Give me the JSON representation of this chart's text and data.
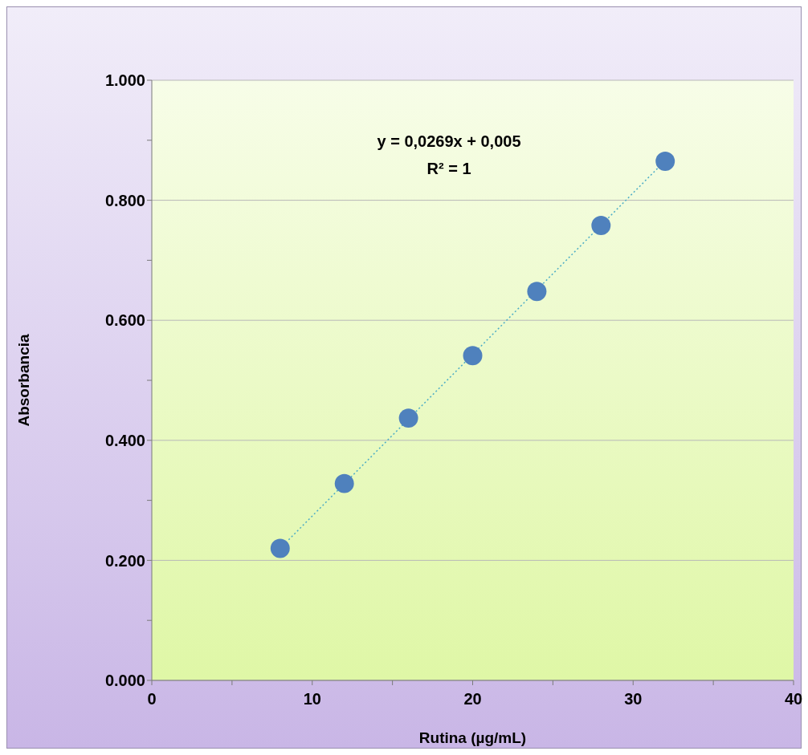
{
  "chart_data": {
    "type": "scatter",
    "xlabel": "Rutina (µg/mL)",
    "ylabel": "Absorbancia",
    "x": [
      8,
      12,
      16,
      20,
      24,
      28,
      32
    ],
    "series": [
      {
        "type": "scatter",
        "color": "#4f81bd",
        "values": [
          0.22,
          0.328,
          0.437,
          0.541,
          0.648,
          0.758,
          0.865
        ],
        "marker": "circle"
      },
      {
        "type": "line",
        "x": [
          8,
          32
        ],
        "color": "#4bacc6",
        "values": [
          0.22,
          0.866
        ],
        "line_style": "dotted",
        "marker": "none"
      }
    ],
    "xlim": [
      0,
      40
    ],
    "xticks": [
      0,
      {
        "value": 5,
        "label": null
      },
      10,
      {
        "value": 15,
        "label": null
      },
      20,
      {
        "value": 25,
        "label": null
      },
      30,
      {
        "value": 35,
        "label": null
      },
      40
    ],
    "ylim": [
      0,
      1
    ],
    "yticks": [
      {
        "value": 0,
        "label": "0.000"
      },
      {
        "value": 0.1,
        "label": null
      },
      {
        "value": 0.2,
        "label": "0.200"
      },
      {
        "value": 0.3,
        "label": null
      },
      {
        "value": 0.4,
        "label": "0.400"
      },
      {
        "value": 0.5,
        "label": null
      },
      {
        "value": 0.6,
        "label": "0.600"
      },
      {
        "value": 0.7,
        "label": null
      },
      {
        "value": 0.8,
        "label": "0.800"
      },
      {
        "value": 0.9,
        "label": null
      },
      {
        "value": 1,
        "label": "1.000"
      }
    ],
    "grid": "y",
    "annotations": [
      "y = 0,0269x + 0,005",
      "R² = 1"
    ]
  }
}
